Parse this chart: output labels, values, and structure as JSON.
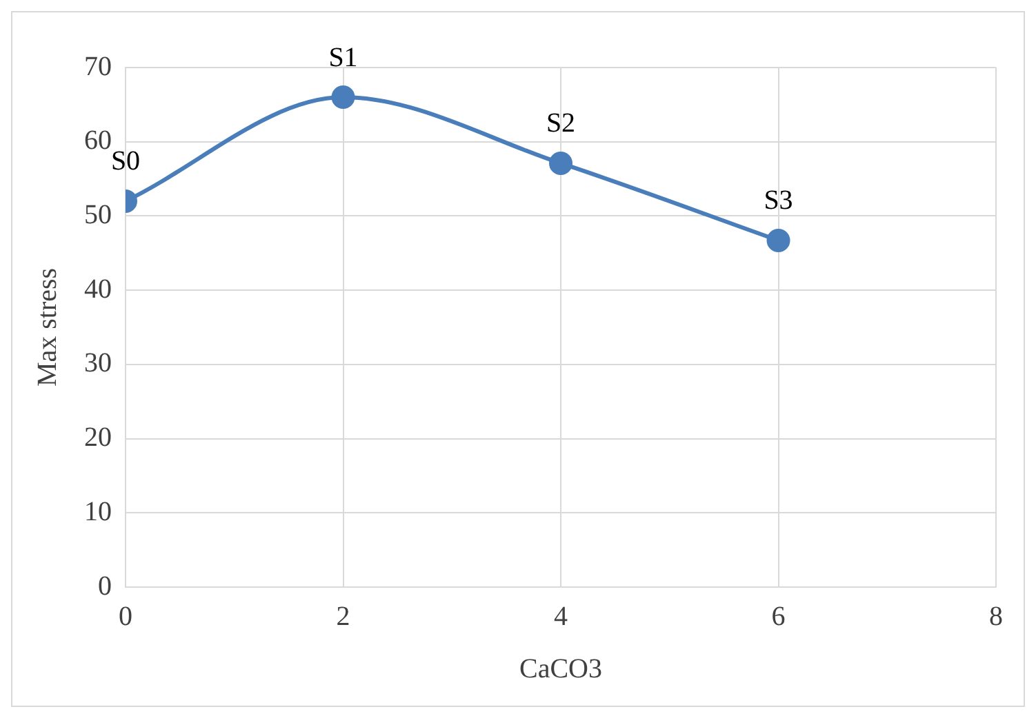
{
  "chart_data": {
    "type": "line",
    "xlabel": "CaCO3",
    "ylabel": "Max stress",
    "x": [
      0,
      2,
      4,
      6
    ],
    "series": [
      {
        "color": "#4a7ebb",
        "values": [
          52,
          66,
          57.1,
          46.7
        ]
      }
    ],
    "xlim": [
      0,
      8
    ],
    "xticks": [
      0,
      2,
      4,
      6,
      8
    ],
    "ylim": [
      0,
      70
    ],
    "yticks": [
      0,
      10,
      20,
      30,
      40,
      50,
      60,
      70
    ],
    "grid": true,
    "legend": false,
    "marker": "circle",
    "line_style": "solid",
    "annotations": [
      {
        "text": "S0",
        "x": 0,
        "y": 52
      },
      {
        "text": "S1",
        "x": 2,
        "y": 66
      },
      {
        "text": "S2",
        "x": 4,
        "y": 57.1
      },
      {
        "text": "S3",
        "x": 6,
        "y": 46.7
      }
    ]
  }
}
